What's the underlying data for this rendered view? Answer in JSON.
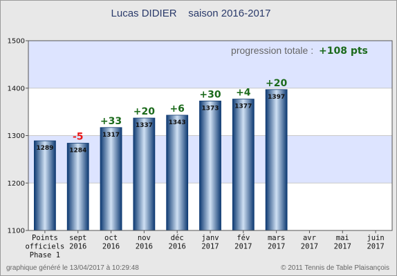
{
  "chart_data": {
    "type": "bar",
    "title": "Lucas DIDIER    saison 2016-2017",
    "categories": [
      [
        "Points",
        "officiels",
        "Phase 1"
      ],
      [
        "sept",
        "2016"
      ],
      [
        "oct",
        "2016"
      ],
      [
        "nov",
        "2016"
      ],
      [
        "déc",
        "2016"
      ],
      [
        "janv",
        "2017"
      ],
      [
        "fév",
        "2017"
      ],
      [
        "mars",
        "2017"
      ],
      [
        "avr",
        "2017"
      ],
      [
        "mai",
        "2017"
      ],
      [
        "juin",
        "2017"
      ]
    ],
    "values": [
      1289,
      1284,
      1317,
      1337,
      1343,
      1373,
      1377,
      1397,
      null,
      null,
      null
    ],
    "deltas": [
      null,
      "-5",
      "+33",
      "+20",
      "+6",
      "+30",
      "+4",
      "+20",
      null,
      null,
      null
    ],
    "ylim": [
      1100,
      1500
    ],
    "yticks": [
      1100,
      1200,
      1300,
      1400,
      1500
    ],
    "xlabel": "",
    "ylabel": "",
    "grid": true,
    "legend": "none"
  },
  "summary": {
    "label": "progression totale : ",
    "value": "+108 pts"
  },
  "footer": {
    "left": "graphique généré le 13/04/2017 à 10:29:48",
    "right": "© 2011 Tennis de Table Plaisançois"
  },
  "colors": {
    "band_light": "#dde4ff",
    "band_white": "#ffffff",
    "bar_dark": "#0e3a72",
    "bar_light": "#cfe0f3",
    "delta_positive": "#1b6a1b",
    "delta_negative": "#e81818"
  }
}
